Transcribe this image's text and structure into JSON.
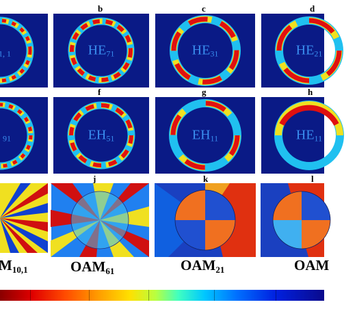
{
  "panel_letters": [
    "b",
    "c",
    "d",
    "f",
    "g",
    "h",
    "j",
    "k",
    "l"
  ],
  "hybrid_modes": [
    {
      "base": "",
      "sub": "1, 1"
    },
    {
      "base": "HE",
      "sub": "71"
    },
    {
      "base": "HE",
      "sub": "31"
    },
    {
      "base": "HE",
      "sub": "21"
    },
    {
      "base": "",
      "sub": "91"
    },
    {
      "base": "EH",
      "sub": "51"
    },
    {
      "base": "EH",
      "sub": "11"
    },
    {
      "base": "HE",
      "sub": "11"
    }
  ],
  "oam_labels": [
    {
      "base": "M",
      "sub": "10,1"
    },
    {
      "base": "OAM",
      "sub": "61"
    },
    {
      "base": "OAM",
      "sub": "21"
    },
    {
      "base": "OAM",
      "sub": ""
    }
  ],
  "colors": {
    "background": "#0a1a86",
    "ring_hot": "#e01010",
    "ring_warm": "#f0e020",
    "ring_cool": "#20c0f0",
    "mode_label": "#3a8ff0"
  }
}
